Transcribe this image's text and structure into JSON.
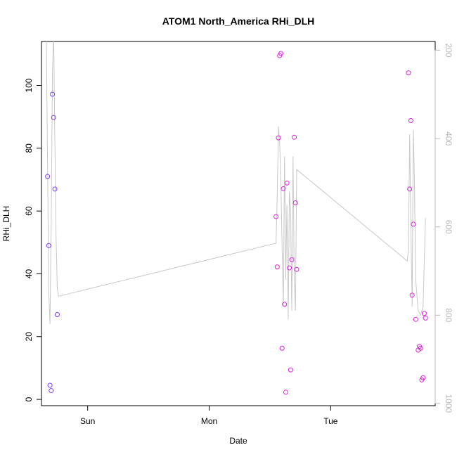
{
  "chart_data": {
    "type": "scatter",
    "title": "ATOM1 North_America RHi_DLH",
    "xlabel": "Date",
    "ylabel": "RHi_DLH",
    "xlim": [
      -0.38,
      2.86
    ],
    "ylim": [
      -2,
      114
    ],
    "y2lim": [
      1005,
      180
    ],
    "x_ticks": [
      {
        "value": 0,
        "label": "Sun"
      },
      {
        "value": 1,
        "label": "Mon"
      },
      {
        "value": 2,
        "label": "Tue"
      }
    ],
    "y_ticks": [
      0,
      20,
      40,
      60,
      80,
      100
    ],
    "y2_ticks": [
      200,
      400,
      600,
      800,
      1000
    ],
    "colors": {
      "points_early": "#7a3cf0",
      "points_late": "#e020e0",
      "line": "#c8c8c8",
      "axis": "#000000",
      "right_axis": "#b8b8b8"
    },
    "series": [
      {
        "type": "points",
        "values": [
          {
            "x": -0.33,
            "y": 71.0
          },
          {
            "x": -0.32,
            "y": 49.0
          },
          {
            "x": -0.31,
            "y": 4.5
          },
          {
            "x": -0.3,
            "y": 2.8
          },
          {
            "x": -0.29,
            "y": 97.2
          },
          {
            "x": -0.28,
            "y": 89.8
          },
          {
            "x": -0.27,
            "y": 67.0
          },
          {
            "x": -0.25,
            "y": 27.0
          },
          {
            "x": 1.55,
            "y": 58.2
          },
          {
            "x": 1.56,
            "y": 42.2
          },
          {
            "x": 1.57,
            "y": 83.3
          },
          {
            "x": 1.58,
            "y": 109.5
          },
          {
            "x": 1.59,
            "y": 110.2
          },
          {
            "x": 1.6,
            "y": 16.3
          },
          {
            "x": 1.61,
            "y": 67.1
          },
          {
            "x": 1.62,
            "y": 30.3
          },
          {
            "x": 1.63,
            "y": 2.3
          },
          {
            "x": 1.64,
            "y": 68.9
          },
          {
            "x": 1.66,
            "y": 41.9
          },
          {
            "x": 1.67,
            "y": 9.4
          },
          {
            "x": 1.68,
            "y": 44.5
          },
          {
            "x": 1.7,
            "y": 83.5
          },
          {
            "x": 1.71,
            "y": 62.6
          },
          {
            "x": 1.72,
            "y": 41.4
          },
          {
            "x": 2.64,
            "y": 104.0
          },
          {
            "x": 2.65,
            "y": 67.0
          },
          {
            "x": 2.66,
            "y": 88.8
          },
          {
            "x": 2.67,
            "y": 33.2
          },
          {
            "x": 2.68,
            "y": 55.8
          },
          {
            "x": 2.7,
            "y": 25.5
          },
          {
            "x": 2.72,
            "y": 15.7
          },
          {
            "x": 2.73,
            "y": 16.9
          },
          {
            "x": 2.74,
            "y": 16.3
          },
          {
            "x": 2.75,
            "y": 6.2
          },
          {
            "x": 2.76,
            "y": 6.9
          },
          {
            "x": 2.77,
            "y": 27.4
          },
          {
            "x": 2.78,
            "y": 25.9
          }
        ]
      },
      {
        "type": "line",
        "axis": "right",
        "values": [
          {
            "x": -0.34,
            "y": 170
          },
          {
            "x": -0.33,
            "y": 450
          },
          {
            "x": -0.32,
            "y": 750
          },
          {
            "x": -0.31,
            "y": 820
          },
          {
            "x": -0.3,
            "y": 600
          },
          {
            "x": -0.29,
            "y": 250
          },
          {
            "x": -0.28,
            "y": 160
          },
          {
            "x": -0.27,
            "y": 400
          },
          {
            "x": -0.26,
            "y": 620
          },
          {
            "x": -0.25,
            "y": 740
          },
          {
            "x": -0.24,
            "y": 757
          },
          {
            "x": 1.55,
            "y": 637
          },
          {
            "x": 1.56,
            "y": 530
          },
          {
            "x": 1.57,
            "y": 372
          },
          {
            "x": 1.58,
            "y": 410
          },
          {
            "x": 1.59,
            "y": 500
          },
          {
            "x": 1.6,
            "y": 640
          },
          {
            "x": 1.61,
            "y": 780
          },
          {
            "x": 1.62,
            "y": 440
          },
          {
            "x": 1.63,
            "y": 720
          },
          {
            "x": 1.64,
            "y": 550
          },
          {
            "x": 1.65,
            "y": 810
          },
          {
            "x": 1.66,
            "y": 520
          },
          {
            "x": 1.67,
            "y": 560
          },
          {
            "x": 1.68,
            "y": 790
          },
          {
            "x": 1.69,
            "y": 440
          },
          {
            "x": 1.7,
            "y": 720
          },
          {
            "x": 1.71,
            "y": 790
          },
          {
            "x": 1.72,
            "y": 470
          },
          {
            "x": 2.63,
            "y": 677
          },
          {
            "x": 2.64,
            "y": 650
          },
          {
            "x": 2.65,
            "y": 390
          },
          {
            "x": 2.66,
            "y": 600
          },
          {
            "x": 2.67,
            "y": 780
          },
          {
            "x": 2.68,
            "y": 380
          },
          {
            "x": 2.69,
            "y": 510
          },
          {
            "x": 2.7,
            "y": 720
          },
          {
            "x": 2.72,
            "y": 790
          },
          {
            "x": 2.74,
            "y": 800
          },
          {
            "x": 2.76,
            "y": 780
          },
          {
            "x": 2.78,
            "y": 580
          }
        ]
      }
    ]
  }
}
